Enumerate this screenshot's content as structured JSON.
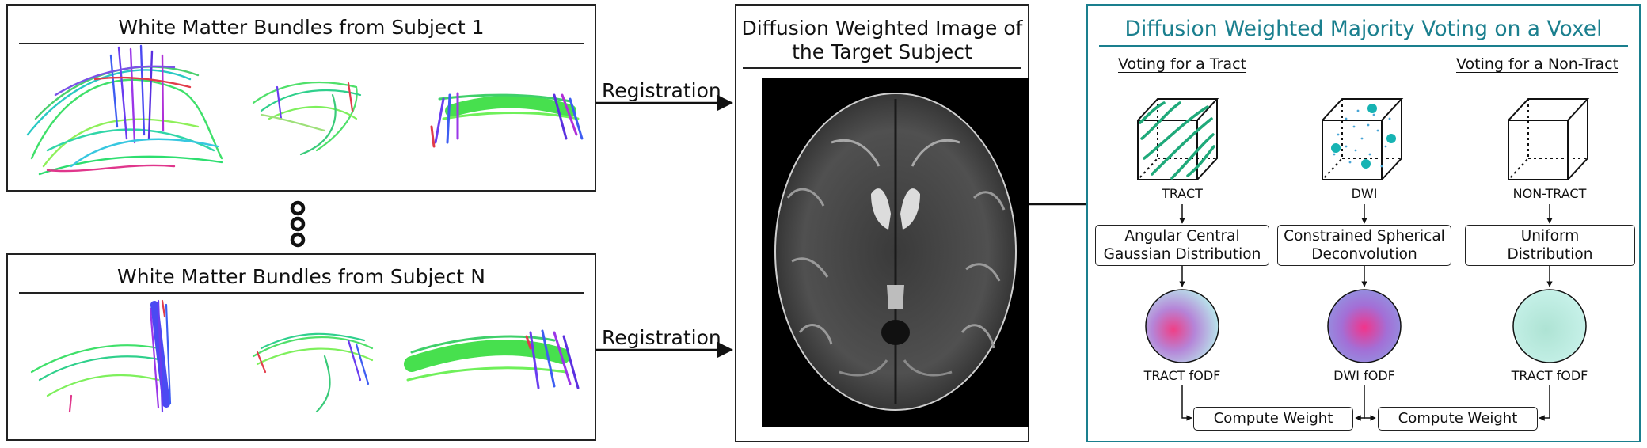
{
  "panels": {
    "subject1_title": "White Matter Bundles from Subject 1",
    "subjectN_title": "White Matter Bundles from Subject N",
    "dwi_title_line1": "Diffusion Weighted Image of",
    "dwi_title_line2": "the Target Subject",
    "voting_title": "Diffusion Weighted Majority Voting on a Voxel"
  },
  "arrows": {
    "registration_top": "Registration",
    "registration_bottom": "Registration"
  },
  "voting": {
    "tract_heading": "Voting for a Tract",
    "nontract_heading": "Voting for a Non-Tract",
    "cube_labels": [
      "TRACT",
      "DWI",
      "NON-TRACT"
    ],
    "boxes": [
      {
        "line1": "Angular Central",
        "line2": "Gaussian Distribution"
      },
      {
        "line1": "Constrained Spherical",
        "line2": "Deconvolution"
      },
      {
        "line1": "Uniform",
        "line2": "Distribution"
      }
    ],
    "fodf_labels": [
      "TRACT fODF",
      "DWI fODF",
      "TRACT fODF"
    ],
    "compute_left": "Compute Weight",
    "compute_right": "Compute Weight"
  },
  "colors": {
    "voting_accent": "#1a7f8e",
    "fiber_green": "#1fa97a",
    "dwi_dot": "#16b3b3",
    "panel_border": "#222222"
  }
}
